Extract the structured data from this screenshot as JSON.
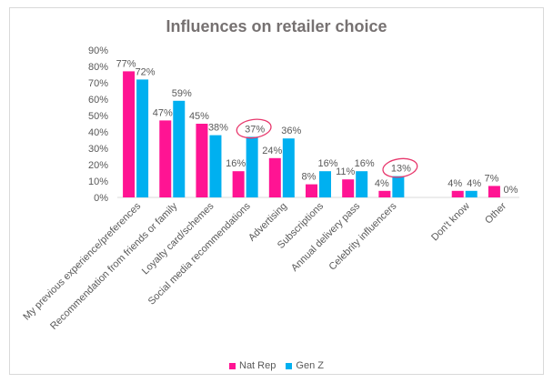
{
  "chart_data": {
    "type": "bar",
    "title": "Influences on retailer choice",
    "categories": [
      "My previous experience/preferences",
      "Recommendation from friends or family",
      "Loyalty card/schemes",
      "Social media recommendations",
      "Advertising",
      "Subscriptions",
      "Annual delivery pass",
      "Celebrity influencers",
      "",
      "Don't know",
      "Other"
    ],
    "series": [
      {
        "name": "Nat Rep",
        "color": "#ff1493",
        "values": [
          77,
          47,
          45,
          16,
          24,
          8,
          11,
          4,
          null,
          4,
          7
        ]
      },
      {
        "name": "Gen Z",
        "color": "#00b0f0",
        "values": [
          72,
          59,
          38,
          37,
          36,
          16,
          16,
          13,
          null,
          4,
          0
        ]
      }
    ],
    "ylim": [
      0,
      90
    ],
    "yticks": [
      "0%",
      "10%",
      "20%",
      "30%",
      "40%",
      "50%",
      "60%",
      "70%",
      "80%",
      "90%"
    ],
    "value_suffix": "%",
    "grid": false,
    "legend_position": "bottom",
    "annotations": [
      {
        "type": "circle",
        "series": "Gen Z",
        "category": "Social media recommendations",
        "color": "#e8386d"
      },
      {
        "type": "circle",
        "series": "Gen Z",
        "category": "Celebrity influencers",
        "color": "#e8386d"
      }
    ]
  }
}
